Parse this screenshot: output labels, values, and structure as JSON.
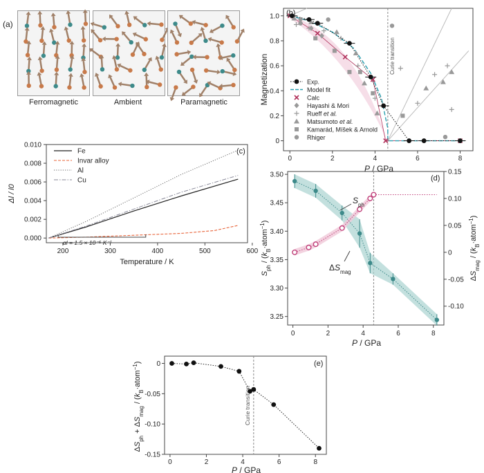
{
  "panel_a": {
    "label": "(a)",
    "captions": [
      "Ferromagnetic",
      "Ambient",
      "Paramagnetic"
    ]
  },
  "colors": {
    "fe": "#222222",
    "invar": "#e8643a",
    "al": "#666666",
    "cu": "#8a8a9a",
    "model_fit": "#2aa0b0",
    "calc": "#b0305a",
    "gray_marker": "#999999",
    "teal": "#3d8a8a",
    "teal_fill": "#a9d3d0",
    "magenta": "#c0407a",
    "pink_fill": "#f0c8d8",
    "arrow": "#a08068",
    "atom_teal": "#3d8a8a",
    "atom_orange": "#c87a4a"
  },
  "chart_data": [
    {
      "id": "b",
      "label": "(b)",
      "type": "scatter",
      "xlabel": "P / GPa",
      "ylabel": "Magnetization",
      "xlim": [
        -0.3,
        8.6
      ],
      "ylim": [
        -0.08,
        1.06
      ],
      "xticks": [
        0,
        2,
        4,
        6,
        8
      ],
      "yticks": [
        0,
        0.2,
        0.4,
        0.6,
        0.8,
        1.0
      ],
      "ytick_labels": [
        "0",
        "0.2",
        "0.4",
        "0.6",
        "0.8",
        "1.0"
      ],
      "annotation": "Curie transition",
      "transition_x": 4.6,
      "series": [
        {
          "name": "Exp.",
          "x": [
            0.1,
            0.9,
            1.3,
            2.8,
            3.8,
            4.4,
            5.6,
            6.3,
            8.0
          ],
          "y": [
            1.0,
            0.97,
            0.94,
            0.78,
            0.51,
            0.28,
            0.0,
            0.0,
            0.0
          ]
        },
        {
          "name": "Model fit",
          "x": [
            0,
            0.9,
            2.0,
            3.0,
            3.8,
            4.3,
            4.6,
            4.6,
            8.2
          ],
          "y": [
            1.0,
            0.96,
            0.87,
            0.74,
            0.54,
            0.34,
            0.1,
            0.0,
            0.0
          ]
        },
        {
          "name": "Calc",
          "x": [
            0,
            1.3,
            2.6,
            3.9,
            4.5,
            8.0
          ],
          "y": [
            1.0,
            0.86,
            0.67,
            0.49,
            0.0,
            0.0
          ]
        },
        {
          "name": "Hayashi & Mori",
          "x": [
            0.1,
            0.5,
            1.0,
            1.5
          ],
          "y": [
            1.0,
            0.97,
            0.9,
            0.84
          ]
        },
        {
          "name": "Rueff et al.",
          "x": [
            0.3,
            0.9,
            1.6,
            2.4,
            3.2,
            4.0,
            5.2,
            6.0,
            6.8,
            7.4,
            7.6
          ],
          "y": [
            0.93,
            0.9,
            0.88,
            0.82,
            0.6,
            0.34,
            0.58,
            0.3,
            0.53,
            0.6,
            0.25
          ]
        },
        {
          "name": "Matsumoto et al.",
          "x": [
            0.2,
            1.0,
            2.2,
            3.1,
            3.5,
            4.1,
            6.4,
            7.2,
            7.6
          ],
          "y": [
            0.98,
            0.95,
            0.87,
            0.7,
            0.46,
            0.22,
            0.42,
            0.47,
            0.55
          ]
        },
        {
          "name": "Kamarád, Míšek & Arnold",
          "x": [
            1.2,
            2.1,
            2.8,
            3.3,
            3.9,
            5.3
          ],
          "y": [
            0.82,
            0.72,
            0.55,
            0.55,
            0.38,
            0.2
          ]
        },
        {
          "name": "Rhiger",
          "x": [
            0.5,
            1.8,
            4.8,
            7.3
          ],
          "y": [
            0.94,
            0.97,
            0.92,
            0.03
          ]
        }
      ],
      "legend": [
        "Exp.",
        "Model fit",
        "Calc",
        "Hayashi & Mori",
        "Rueff et al.",
        "Matsumoto et al.",
        "Kamarád, Míšek & Arnold",
        "Rhiger"
      ]
    },
    {
      "id": "c",
      "label": "(c)",
      "type": "line",
      "xlabel": "Temperature / K",
      "ylabel": "Δl / l0",
      "xlim": [
        165,
        590
      ],
      "ylim": [
        -0.0005,
        0.01
      ],
      "xticks": [
        200,
        300,
        400,
        500,
        600
      ],
      "yticks": [
        0,
        0.002,
        0.004,
        0.006,
        0.008,
        0.01
      ],
      "ytick_labels": [
        "0.000",
        "0.002",
        "0.004",
        "0.006",
        "0.008",
        "0.010"
      ],
      "annotation": "αl = 1.5 × 10⁻⁶ K⁻¹",
      "series": [
        {
          "name": "Fe",
          "x": [
            170,
            250,
            350,
            450,
            570
          ],
          "y": [
            0,
            0.0012,
            0.0029,
            0.0045,
            0.0063
          ]
        },
        {
          "name": "Invar alloy",
          "x": [
            170,
            250,
            350,
            450,
            520,
            570
          ],
          "y": [
            0,
            0.0001,
            0.0003,
            0.0005,
            0.0008,
            0.00135
          ]
        },
        {
          "name": "Al",
          "x": [
            170,
            250,
            350,
            450,
            570
          ],
          "y": [
            0,
            0.0018,
            0.0043,
            0.0068,
            0.0094
          ]
        },
        {
          "name": "Cu",
          "x": [
            170,
            250,
            350,
            450,
            570
          ],
          "y": [
            0,
            0.0013,
            0.0031,
            0.0049,
            0.0067
          ]
        }
      ],
      "legend": [
        "Fe",
        "Invar alloy",
        "Al",
        "Cu"
      ]
    },
    {
      "id": "d",
      "label": "(d)",
      "type": "line",
      "xlabel": "P / GPa",
      "ylabel_left": "Sph / (kB·atom⁻¹)",
      "ylabel_right": "ΔSmag / (kB·atom⁻¹)",
      "xlim": [
        -0.3,
        8.6
      ],
      "ylim_left": [
        3.235,
        3.505
      ],
      "ylim_right": [
        -0.135,
        0.15
      ],
      "xticks": [
        0,
        2,
        4,
        6,
        8
      ],
      "yticks_left": [
        3.25,
        3.3,
        3.35,
        3.4,
        3.45,
        3.5
      ],
      "ytick_labels_left": [
        "3.25",
        "3.30",
        "3.35",
        "3.40",
        "3.45",
        "3.50"
      ],
      "yticks_right": [
        -0.1,
        -0.05,
        0,
        0.05,
        0.1,
        0.15
      ],
      "ytick_labels_right": [
        "-0.10",
        "-0.05",
        "0",
        "0.05",
        "0.10",
        "0.15"
      ],
      "transition_x": 4.6,
      "series": [
        {
          "name": "Sph",
          "x": [
            0.1,
            1.3,
            2.8,
            3.8,
            4.4,
            5.7,
            8.2
          ],
          "y": [
            3.488,
            3.471,
            3.432,
            3.396,
            3.344,
            3.316,
            3.244
          ],
          "err": [
            0.012,
            0.012,
            0.013,
            0.025,
            0.018,
            0.01,
            0.01
          ]
        },
        {
          "name": "ΔSmag",
          "x": [
            0.1,
            0.9,
            1.3,
            2.8,
            3.8,
            4.4,
            4.6,
            8.2
          ],
          "y": [
            0.0,
            0.009,
            0.015,
            0.045,
            0.08,
            0.1,
            0.107,
            0.107
          ]
        }
      ],
      "series_labels": [
        "Sph",
        "ΔSmag"
      ]
    },
    {
      "id": "e",
      "label": "(e)",
      "type": "line",
      "xlabel": "P / GPa",
      "ylabel": "ΔSph + ΔSmag / (kB·atom⁻¹)",
      "xlim": [
        -0.3,
        8.6
      ],
      "ylim": [
        -0.15,
        0.012
      ],
      "xticks": [
        0,
        2,
        4,
        6,
        8
      ],
      "yticks": [
        0,
        -0.05,
        -0.1,
        -0.15
      ],
      "ytick_labels": [
        "0",
        "-0.05",
        "-0.10",
        "-0.15"
      ],
      "annotation": "Curie transition",
      "transition_x": 4.6,
      "series": [
        {
          "name": "total",
          "x": [
            0.1,
            0.9,
            1.3,
            2.8,
            3.8,
            4.4,
            4.6,
            5.7,
            8.2
          ],
          "y": [
            0.0,
            -0.001,
            0.001,
            -0.005,
            -0.013,
            -0.046,
            -0.043,
            -0.068,
            -0.14
          ]
        }
      ]
    }
  ]
}
